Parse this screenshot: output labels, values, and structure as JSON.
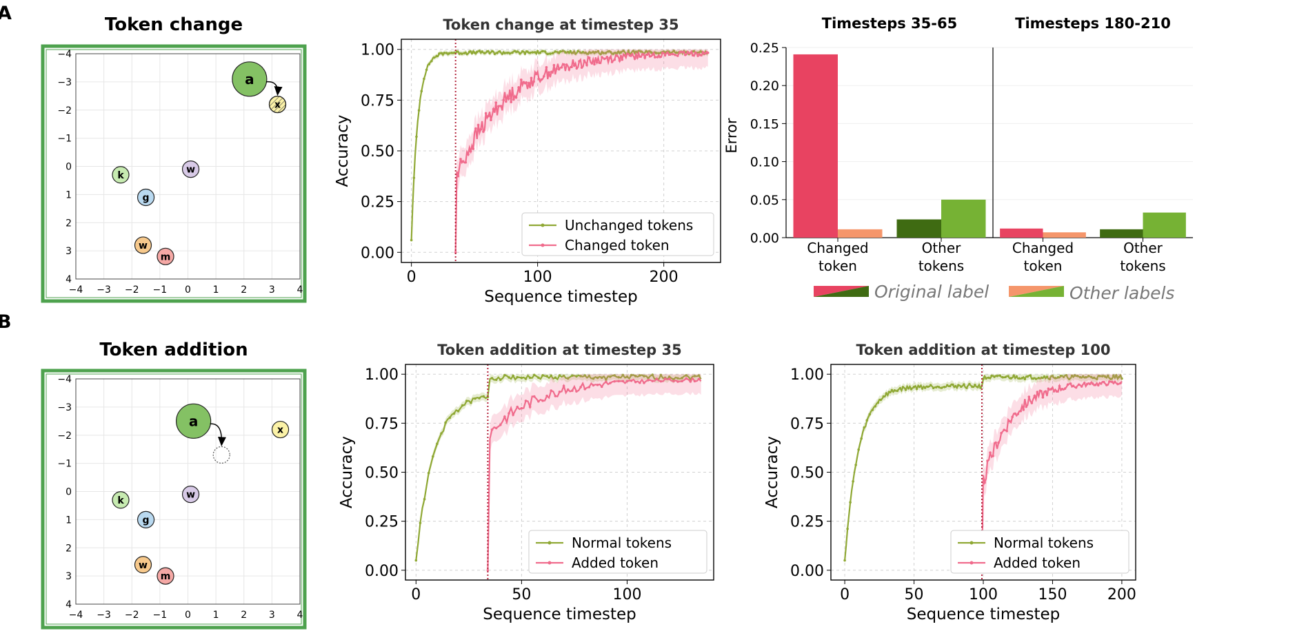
{
  "figure": {
    "panel_a_letter": "A",
    "panel_b_letter": "B",
    "colors": {
      "green": "#8fa834",
      "pink": "#f06b8c",
      "pink_fill": "#f6b3c3",
      "red_bar": "#e84361",
      "salmon_bar": "#f5966b",
      "dark_green_bar": "#3f6b12",
      "light_green_bar": "#76b234",
      "vline": "#b3243c",
      "frame_green": "#4ea24e",
      "node_a": "#84c164",
      "node_k": "#c7ebb1",
      "node_w_purple": "#d8cae7",
      "node_g": "#b9d9f0",
      "node_w_orange": "#f7c98c",
      "node_m": "#f5a8a5",
      "node_x": "#fbf2a7"
    }
  },
  "chart_data": [
    {
      "id": "embed_change",
      "type": "scatter",
      "title": "Token change",
      "xlim": [
        -4,
        4
      ],
      "ylim": [
        -4,
        4
      ],
      "ticks": [
        "−4",
        "−3",
        "−2",
        "−1",
        "0",
        "1",
        "2",
        "3",
        "4"
      ],
      "tick_values": [
        -4,
        -3,
        -2,
        -1,
        0,
        1,
        2,
        3,
        4
      ],
      "y_inverted": true,
      "grid": true,
      "points": [
        {
          "label": "a",
          "x": 2.2,
          "y": -3.1,
          "color": "#84c164",
          "size": "large"
        },
        {
          "label": "x",
          "x": 3.2,
          "y": -2.2,
          "color": "#fbf2a7",
          "size": "small",
          "hatched": true
        },
        {
          "label": "k",
          "x": -2.4,
          "y": 0.3,
          "color": "#c7ebb1",
          "size": "small"
        },
        {
          "label": "w",
          "x": 0.1,
          "y": 0.1,
          "color": "#d8cae7",
          "size": "small"
        },
        {
          "label": "g",
          "x": -1.5,
          "y": 1.1,
          "color": "#b9d9f0",
          "size": "small"
        },
        {
          "label": "w",
          "x": -1.6,
          "y": 2.8,
          "color": "#f7c98c",
          "size": "small"
        },
        {
          "label": "m",
          "x": -0.8,
          "y": 3.2,
          "color": "#f5a8a5",
          "size": "small"
        }
      ],
      "arrow": {
        "from": "a",
        "to": "x"
      }
    },
    {
      "id": "acc_change",
      "type": "line",
      "title": "Token change at timestep 35",
      "xlabel": "Sequence timestep",
      "ylabel": "Accuracy",
      "xlim": [
        -8,
        245
      ],
      "ylim": [
        -0.05,
        1.05
      ],
      "xticks": [
        0,
        100,
        200
      ],
      "yticks": [
        0,
        0.25,
        0.5,
        0.75,
        1
      ],
      "ytick_labels": [
        "0.00",
        "0.25",
        "0.50",
        "0.75",
        "1.00"
      ],
      "vline": 35,
      "legend_position": "lower-right",
      "grid": true,
      "series": [
        {
          "name": "Unchanged tokens",
          "color": "#8fa834",
          "x0": 0,
          "x1": 235,
          "start": 0.06,
          "rate": 0.2,
          "plateau": 0.985,
          "noise": 0.008,
          "band": 0.012
        },
        {
          "name": "Changed token",
          "color": "#f06b8c",
          "x0": 35,
          "x1": 235,
          "start": 0.0,
          "drop": 0.38,
          "rate": 0.025,
          "plateau": 0.985,
          "noise": 0.05,
          "band": 0.07
        }
      ]
    },
    {
      "id": "err_35_65",
      "type": "bar",
      "title": "Timesteps 35-65",
      "ylabel": "Error",
      "ylim": [
        0,
        0.25
      ],
      "yticks": [
        0,
        0.05,
        0.1,
        0.15,
        0.2,
        0.25
      ],
      "ytick_labels": [
        "0.00",
        "0.05",
        "0.10",
        "0.15",
        "0.20",
        "0.25"
      ],
      "categories": [
        "Changed token",
        "Other tokens"
      ],
      "category_lines": [
        [
          "Changed",
          "token"
        ],
        [
          "Other",
          "tokens"
        ]
      ],
      "series": [
        {
          "name": "Original label",
          "values": [
            0.241,
            0.024
          ]
        },
        {
          "name": "Other labels",
          "values": [
            0.011,
            0.05
          ]
        }
      ],
      "bar_colors": [
        [
          "#e84361",
          "#f5966b"
        ],
        [
          "#3f6b12",
          "#76b234"
        ]
      ]
    },
    {
      "id": "err_180_210",
      "type": "bar",
      "title": "Timesteps 180-210",
      "ylim": [
        0,
        0.25
      ],
      "categories": [
        "Changed token",
        "Other tokens"
      ],
      "category_lines": [
        [
          "Changed",
          "token"
        ],
        [
          "Other",
          "tokens"
        ]
      ],
      "series": [
        {
          "name": "Original label",
          "values": [
            0.012,
            0.011
          ]
        },
        {
          "name": "Other labels",
          "values": [
            0.007,
            0.033
          ]
        }
      ],
      "bar_colors": [
        [
          "#e84361",
          "#f5966b"
        ],
        [
          "#3f6b12",
          "#76b234"
        ]
      ]
    },
    {
      "id": "embed_addition",
      "type": "scatter",
      "title": "Token addition",
      "xlim": [
        -4,
        4
      ],
      "ylim": [
        -4,
        4
      ],
      "ticks": [
        "−4",
        "−3",
        "−2",
        "−1",
        "0",
        "1",
        "2",
        "3",
        "4"
      ],
      "tick_values": [
        -4,
        -3,
        -2,
        -1,
        0,
        1,
        2,
        3,
        4
      ],
      "y_inverted": true,
      "grid": true,
      "points": [
        {
          "label": "a",
          "x": 0.2,
          "y": -2.5,
          "color": "#84c164",
          "size": "large"
        },
        {
          "label": "",
          "x": 1.2,
          "y": -1.3,
          "color": "none",
          "size": "small",
          "dashed": true
        },
        {
          "label": "x",
          "x": 3.3,
          "y": -2.2,
          "color": "#fbf2a7",
          "size": "small"
        },
        {
          "label": "k",
          "x": -2.4,
          "y": 0.3,
          "color": "#c7ebb1",
          "size": "small"
        },
        {
          "label": "w",
          "x": 0.1,
          "y": 0.1,
          "color": "#d8cae7",
          "size": "small"
        },
        {
          "label": "g",
          "x": -1.5,
          "y": 1.0,
          "color": "#b9d9f0",
          "size": "small"
        },
        {
          "label": "w",
          "x": -1.6,
          "y": 2.6,
          "color": "#f7c98c",
          "size": "small"
        },
        {
          "label": "m",
          "x": -0.8,
          "y": 3.0,
          "color": "#f5a8a5",
          "size": "small"
        }
      ],
      "arrow": {
        "from": "a",
        "to": "placeholder"
      }
    },
    {
      "id": "acc_add35",
      "type": "line",
      "title": "Token addition at timestep 35",
      "xlabel": "Sequence timestep",
      "ylabel": "Accuracy",
      "xlim": [
        -5,
        141
      ],
      "ylim": [
        -0.05,
        1.05
      ],
      "xticks": [
        0,
        50,
        100
      ],
      "yticks": [
        0,
        0.25,
        0.5,
        0.75,
        1
      ],
      "ytick_labels": [
        "0.00",
        "0.25",
        "0.50",
        "0.75",
        "1.00"
      ],
      "vline": 34,
      "legend_position": "lower-right",
      "grid": true,
      "series": [
        {
          "name": "Normal tokens",
          "color": "#8fa834",
          "x0": 0,
          "x1": 135,
          "start": 0.05,
          "rate": 0.12,
          "plateau": 0.9,
          "jump_at": 34,
          "plateau2": 0.985,
          "noise": 0.012,
          "band": 0.02
        },
        {
          "name": "Added token",
          "color": "#f06b8c",
          "x0": 34,
          "x1": 135,
          "start": 0.0,
          "drop": 0.7,
          "rate": 0.045,
          "plateau": 0.975,
          "noise": 0.035,
          "band": 0.07
        }
      ]
    },
    {
      "id": "acc_add100",
      "type": "line",
      "title": "Token addition at timestep 100",
      "xlabel": "Sequence timestep",
      "ylabel": "Accuracy",
      "xlim": [
        -10,
        210
      ],
      "ylim": [
        -0.05,
        1.05
      ],
      "xticks": [
        0,
        50,
        100,
        150,
        200
      ],
      "yticks": [
        0,
        0.25,
        0.5,
        0.75,
        1
      ],
      "ytick_labels": [
        "0.00",
        "0.25",
        "0.50",
        "0.75",
        "1.00"
      ],
      "vline": 99,
      "legend_position": "lower-right",
      "grid": true,
      "series": [
        {
          "name": "Normal tokens",
          "color": "#8fa834",
          "x0": 0,
          "x1": 200,
          "start": 0.05,
          "rate": 0.1,
          "plateau": 0.94,
          "jump_at": 99,
          "plateau2": 0.985,
          "noise": 0.01,
          "band": 0.02
        },
        {
          "name": "Added token",
          "color": "#f06b8c",
          "x0": 99,
          "x1": 200,
          "start": 0.0,
          "drop": 0.45,
          "rate": 0.05,
          "plateau": 0.96,
          "noise": 0.04,
          "band": 0.07
        }
      ]
    }
  ]
}
